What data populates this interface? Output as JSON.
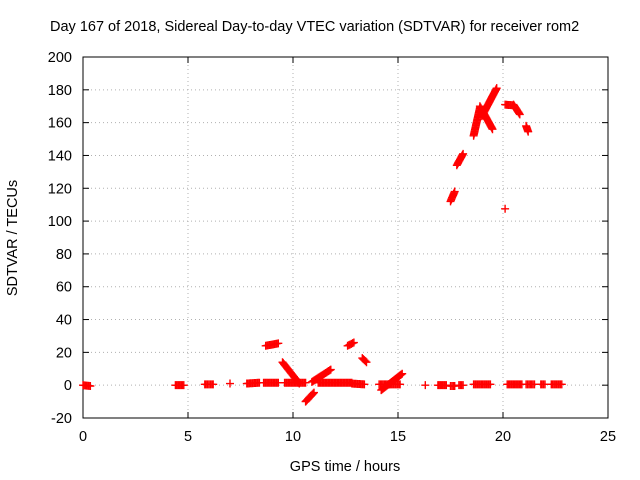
{
  "chart_data": {
    "type": "scatter",
    "title": "Day 167 of 2018, Sidereal Day-to-day VTEC variation (SDTVAR) for receiver rom2",
    "xlabel": "GPS time / hours",
    "ylabel": "SDTVAR / TECUs",
    "xlim": [
      0,
      25
    ],
    "ylim": [
      -20,
      200
    ],
    "xticks": [
      "0",
      "5",
      "10",
      "15",
      "20",
      "25"
    ],
    "yticks": [
      "-20",
      "0",
      "20",
      "40",
      "60",
      "80",
      "100",
      "120",
      "140",
      "160",
      "180",
      "200"
    ],
    "grid": true,
    "marker": "plus",
    "color": "#ff0000",
    "segments": [
      {
        "x0": 0.0,
        "y0": 0.0,
        "x1": 0.35,
        "y1": -0.5,
        "n": 4
      },
      {
        "x0": 4.4,
        "y0": 0.0,
        "x1": 4.8,
        "y1": 0.0,
        "n": 4
      },
      {
        "x0": 5.8,
        "y0": 0.5,
        "x1": 6.2,
        "y1": 0.5,
        "n": 4
      },
      {
        "x0": 7.0,
        "y0": 1.0,
        "x1": 7.0,
        "y1": 1.0,
        "n": 1
      },
      {
        "x0": 7.8,
        "y0": 1.0,
        "x1": 8.4,
        "y1": 1.5,
        "n": 5
      },
      {
        "x0": 8.6,
        "y0": 1.5,
        "x1": 9.3,
        "y1": 1.5,
        "n": 5
      },
      {
        "x0": 8.7,
        "y0": 24.0,
        "x1": 9.3,
        "y1": 25.5,
        "n": 6
      },
      {
        "x0": 9.5,
        "y0": 14.0,
        "x1": 10.3,
        "y1": 1.0,
        "n": 8
      },
      {
        "x0": 9.6,
        "y0": 1.5,
        "x1": 10.6,
        "y1": 1.5,
        "n": 7
      },
      {
        "x0": 10.6,
        "y0": -10.0,
        "x1": 11.0,
        "y1": -4.5,
        "n": 5
      },
      {
        "x0": 10.9,
        "y0": 2.0,
        "x1": 11.8,
        "y1": 9.5,
        "n": 8
      },
      {
        "x0": 11.2,
        "y0": 1.5,
        "x1": 12.8,
        "y1": 1.5,
        "n": 10
      },
      {
        "x0": 12.6,
        "y0": 24.0,
        "x1": 12.9,
        "y1": 26.0,
        "n": 3
      },
      {
        "x0": 12.8,
        "y0": 1.0,
        "x1": 13.4,
        "y1": 0.5,
        "n": 4
      },
      {
        "x0": 13.3,
        "y0": 16.5,
        "x1": 13.5,
        "y1": 14.0,
        "n": 3
      },
      {
        "x0": 14.1,
        "y0": 0.5,
        "x1": 14.6,
        "y1": 0.5,
        "n": 4
      },
      {
        "x0": 14.2,
        "y0": -3.0,
        "x1": 15.2,
        "y1": 7.0,
        "n": 8
      },
      {
        "x0": 14.6,
        "y0": 0.5,
        "x1": 15.1,
        "y1": 0.5,
        "n": 4
      },
      {
        "x0": 16.3,
        "y0": 0.0,
        "x1": 16.3,
        "y1": 0.0,
        "n": 1
      },
      {
        "x0": 16.9,
        "y0": 0.0,
        "x1": 17.3,
        "y1": 0.0,
        "n": 3
      },
      {
        "x0": 17.5,
        "y0": -0.5,
        "x1": 17.7,
        "y1": -0.5,
        "n": 2
      },
      {
        "x0": 17.9,
        "y0": 0.0,
        "x1": 18.1,
        "y1": 0.0,
        "n": 2
      },
      {
        "x0": 18.6,
        "y0": 0.5,
        "x1": 19.4,
        "y1": 0.5,
        "n": 6
      },
      {
        "x0": 17.5,
        "y0": 112.0,
        "x1": 17.7,
        "y1": 118.0,
        "n": 4
      },
      {
        "x0": 17.8,
        "y0": 134.0,
        "x1": 18.1,
        "y1": 141.0,
        "n": 4
      },
      {
        "x0": 18.6,
        "y0": 152.0,
        "x1": 18.9,
        "y1": 169.0,
        "n": 7
      },
      {
        "x0": 18.9,
        "y0": 170.0,
        "x1": 19.5,
        "y1": 156.0,
        "n": 7
      },
      {
        "x0": 19.0,
        "y0": 164.0,
        "x1": 19.7,
        "y1": 181.0,
        "n": 7
      },
      {
        "x0": 20.1,
        "y0": 107.5,
        "x1": 20.1,
        "y1": 107.5,
        "n": 1
      },
      {
        "x0": 20.1,
        "y0": 171.0,
        "x1": 20.5,
        "y1": 170.5,
        "n": 4
      },
      {
        "x0": 20.5,
        "y0": 171.0,
        "x1": 20.8,
        "y1": 165.0,
        "n": 4
      },
      {
        "x0": 21.1,
        "y0": 158.0,
        "x1": 21.2,
        "y1": 154.5,
        "n": 3
      },
      {
        "x0": 20.2,
        "y0": 0.5,
        "x1": 20.9,
        "y1": 0.5,
        "n": 5
      },
      {
        "x0": 21.1,
        "y0": 0.5,
        "x1": 21.5,
        "y1": 0.5,
        "n": 3
      },
      {
        "x0": 21.8,
        "y0": 0.5,
        "x1": 22.0,
        "y1": 0.5,
        "n": 2
      },
      {
        "x0": 22.3,
        "y0": 0.5,
        "x1": 22.8,
        "y1": 0.5,
        "n": 4
      }
    ]
  }
}
